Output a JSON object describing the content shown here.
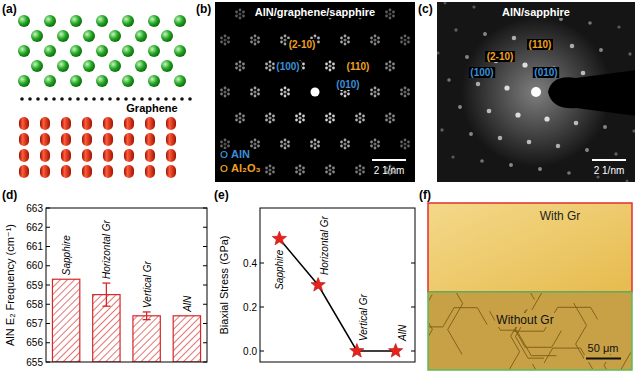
{
  "panel_letters": [
    "(a)",
    "(b)",
    "(c)",
    "(d)",
    "(e)",
    "(f)"
  ],
  "panel_a": {
    "label": "Graphene"
  },
  "panel_b": {
    "title": "AlN/graphene/sapphire",
    "spot_labels": [
      {
        "text": "(2-10)",
        "color": "#f0a020"
      },
      {
        "text": "(110)",
        "color": "#f0a020"
      },
      {
        "text": "(100)",
        "color": "#3b8fd8"
      },
      {
        "text": "(010)",
        "color": "#3b8fd8"
      }
    ],
    "legend": [
      {
        "text": "AlN",
        "color": "#3b8fd8"
      },
      {
        "text": "Al₂O₃",
        "color": "#f0a020"
      }
    ],
    "scale_bar": "2 1/nm"
  },
  "panel_c": {
    "title": "AlN/sapphire",
    "spot_labels": [
      {
        "text": "(110)",
        "color": "#f0a020"
      },
      {
        "text": "(2-10)",
        "color": "#f0a020"
      },
      {
        "text": "(100)",
        "color": "#3b8fd8"
      },
      {
        "text": "(010)",
        "color": "#3b8fd8"
      }
    ],
    "scale_bar": "2 1/nm"
  },
  "panel_f": {
    "top_label": "With Gr",
    "bottom_label": "Without Gr",
    "scale_bar": "50 μm"
  },
  "chart_data": [
    {
      "type": "bar",
      "ylabel": "AlN E₂ Frequency (cm⁻¹)",
      "categories": [
        "Sapphire",
        "Horizontal Gr",
        "Vertical Gr",
        "AlN"
      ],
      "values": [
        659.3,
        658.5,
        657.4,
        657.4
      ],
      "errors": [
        null,
        0.6,
        0.2,
        null
      ],
      "color": "#d62728",
      "ylim": [
        655,
        663
      ],
      "yticks": [
        655,
        656,
        657,
        658,
        659,
        660,
        661,
        662,
        663
      ]
    },
    {
      "type": "line",
      "ylabel": "Biaxial Stress (GPa)",
      "categories": [
        "Sapphire",
        "Horizontal Gr",
        "Vertical Gr",
        "AlN"
      ],
      "values": [
        0.51,
        0.3,
        0,
        0
      ],
      "color": "#e8221b",
      "marker": "star",
      "ylim": [
        -0.05,
        0.65
      ],
      "yticks": [
        {
          "value": 0,
          "label": "0.0"
        },
        {
          "value": 0.2,
          "label": "0.2"
        },
        {
          "value": 0.4,
          "label": "0.4"
        }
      ],
      "tick_labels": "y"
    }
  ]
}
